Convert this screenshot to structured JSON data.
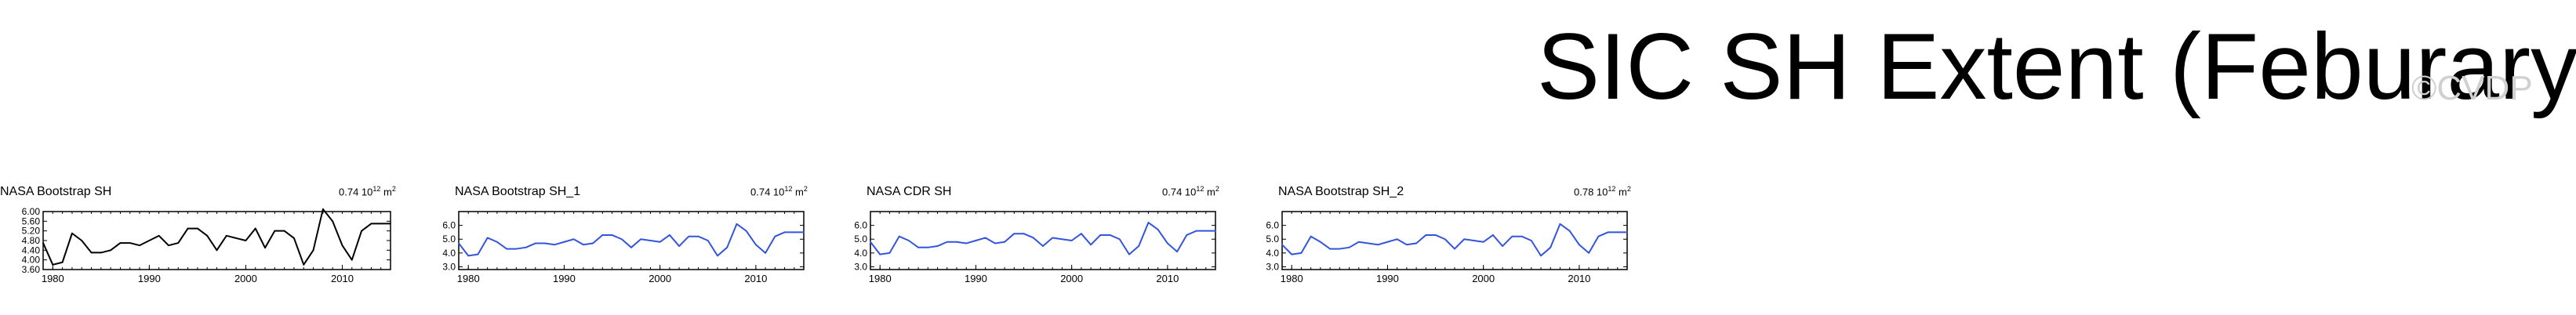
{
  "page": {
    "title": "SIC SH Extent (Feburary)",
    "watermark": "©CVDP"
  },
  "chart_data": [
    {
      "type": "line",
      "title": "NASA Bootstrap SH",
      "right_label_value": "0.74",
      "right_label_exp": "12",
      "right_label_unit": "m",
      "right_label_unit_exp": "2",
      "color": "#000000",
      "x": [
        1979,
        1980,
        1981,
        1982,
        1983,
        1984,
        1985,
        1986,
        1987,
        1988,
        1989,
        1990,
        1991,
        1992,
        1993,
        1994,
        1995,
        1996,
        1997,
        1998,
        1999,
        2000,
        2001,
        2002,
        2003,
        2004,
        2005,
        2006,
        2007,
        2008,
        2009,
        2010,
        2011,
        2012,
        2013,
        2014,
        2015
      ],
      "series": [
        {
          "values": [
            4.7,
            3.8,
            3.9,
            5.1,
            4.8,
            4.3,
            4.3,
            4.4,
            4.7,
            4.7,
            4.6,
            4.8,
            5.0,
            4.6,
            4.7,
            5.3,
            5.3,
            5.0,
            4.4,
            5.0,
            4.9,
            4.8,
            5.3,
            4.5,
            5.2,
            5.2,
            4.9,
            3.8,
            4.4,
            6.1,
            5.6,
            4.6,
            4.0,
            5.2,
            5.5,
            5.5,
            5.5
          ]
        }
      ],
      "ylim": [
        3.6,
        6.0
      ],
      "xlim": [
        1979,
        2015
      ],
      "yticks": [
        3.6,
        4.0,
        4.4,
        4.8,
        5.2,
        5.6,
        6.0
      ],
      "ytick_labels": [
        "3.60",
        "4.00",
        "4.40",
        "4.80",
        "5.20",
        "5.60",
        "6.00"
      ],
      "xticks": [
        1980,
        1990,
        2000,
        2010
      ],
      "xtick_labels": [
        "1980",
        "1990",
        "2000",
        "2010"
      ]
    },
    {
      "type": "line",
      "title": "NASA Bootstrap SH_1",
      "right_label_value": "0.74",
      "right_label_exp": "12",
      "right_label_unit": "m",
      "right_label_unit_exp": "2",
      "color": "#3355dd",
      "x": [
        1979,
        1980,
        1981,
        1982,
        1983,
        1984,
        1985,
        1986,
        1987,
        1988,
        1989,
        1990,
        1991,
        1992,
        1993,
        1994,
        1995,
        1996,
        1997,
        1998,
        1999,
        2000,
        2001,
        2002,
        2003,
        2004,
        2005,
        2006,
        2007,
        2008,
        2009,
        2010,
        2011,
        2012,
        2013,
        2014,
        2015
      ],
      "series": [
        {
          "values": [
            4.7,
            3.8,
            3.9,
            5.1,
            4.8,
            4.3,
            4.3,
            4.4,
            4.7,
            4.7,
            4.6,
            4.8,
            5.0,
            4.6,
            4.7,
            5.3,
            5.3,
            5.0,
            4.4,
            5.0,
            4.9,
            4.8,
            5.3,
            4.5,
            5.2,
            5.2,
            4.9,
            3.8,
            4.4,
            6.1,
            5.6,
            4.6,
            4.0,
            5.2,
            5.5,
            5.5,
            5.5
          ]
        }
      ],
      "ylim": [
        2.8,
        7.0
      ],
      "xlim": [
        1979,
        2015
      ],
      "yticks": [
        3.0,
        4.0,
        5.0,
        6.0
      ],
      "ytick_labels": [
        "3.0",
        "4.0",
        "5.0",
        "6.0"
      ],
      "xticks": [
        1980,
        1990,
        2000,
        2010
      ],
      "xtick_labels": [
        "1980",
        "1990",
        "2000",
        "2010"
      ]
    },
    {
      "type": "line",
      "title": "NASA CDR SH",
      "right_label_value": "0.74",
      "right_label_exp": "12",
      "right_label_unit": "m",
      "right_label_unit_exp": "2",
      "color": "#3355dd",
      "x": [
        1979,
        1980,
        1981,
        1982,
        1983,
        1984,
        1985,
        1986,
        1987,
        1988,
        1989,
        1990,
        1991,
        1992,
        1993,
        1994,
        1995,
        1996,
        1997,
        1998,
        1999,
        2000,
        2001,
        2002,
        2003,
        2004,
        2005,
        2006,
        2007,
        2008,
        2009,
        2010,
        2011,
        2012,
        2013,
        2014,
        2015
      ],
      "series": [
        {
          "values": [
            4.8,
            3.9,
            4.0,
            5.2,
            4.9,
            4.4,
            4.4,
            4.5,
            4.8,
            4.8,
            4.7,
            4.9,
            5.1,
            4.7,
            4.8,
            5.4,
            5.4,
            5.1,
            4.5,
            5.1,
            5.0,
            4.9,
            5.4,
            4.6,
            5.3,
            5.3,
            5.0,
            3.9,
            4.5,
            6.2,
            5.7,
            4.7,
            4.1,
            5.3,
            5.6,
            5.6,
            5.6
          ]
        }
      ],
      "ylim": [
        2.8,
        7.0
      ],
      "xlim": [
        1979,
        2015
      ],
      "yticks": [
        3.0,
        4.0,
        5.0,
        6.0
      ],
      "ytick_labels": [
        "3.0",
        "4.0",
        "5.0",
        "6.0"
      ],
      "xticks": [
        1980,
        1990,
        2000,
        2010
      ],
      "xtick_labels": [
        "1980",
        "1990",
        "2000",
        "2010"
      ]
    },
    {
      "type": "line",
      "title": "NASA Bootstrap SH_2",
      "right_label_value": "0.78",
      "right_label_exp": "12",
      "right_label_unit": "m",
      "right_label_unit_exp": "2",
      "color": "#3355dd",
      "x": [
        1979,
        1980,
        1981,
        1982,
        1983,
        1984,
        1985,
        1986,
        1987,
        1988,
        1989,
        1990,
        1991,
        1992,
        1993,
        1994,
        1995,
        1996,
        1997,
        1998,
        1999,
        2000,
        2001,
        2002,
        2003,
        2004,
        2005,
        2006,
        2007,
        2008,
        2009,
        2010,
        2011,
        2012,
        2013,
        2014,
        2015
      ],
      "series": [
        {
          "values": [
            4.6,
            3.9,
            4.0,
            5.2,
            4.8,
            4.3,
            4.3,
            4.4,
            4.8,
            4.7,
            4.6,
            4.8,
            5.0,
            4.6,
            4.7,
            5.3,
            5.3,
            5.0,
            4.3,
            5.0,
            4.9,
            4.8,
            5.3,
            4.5,
            5.2,
            5.2,
            4.9,
            3.8,
            4.4,
            6.1,
            5.6,
            4.6,
            4.0,
            5.2,
            5.5,
            5.5,
            5.5
          ]
        }
      ],
      "ylim": [
        2.8,
        7.0
      ],
      "xlim": [
        1979,
        2015
      ],
      "yticks": [
        3.0,
        4.0,
        5.0,
        6.0
      ],
      "ytick_labels": [
        "3.0",
        "4.0",
        "5.0",
        "6.0"
      ],
      "xticks": [
        1980,
        1990,
        2000,
        2010
      ],
      "xtick_labels": [
        "1980",
        "1990",
        "2000",
        "2010"
      ]
    }
  ]
}
